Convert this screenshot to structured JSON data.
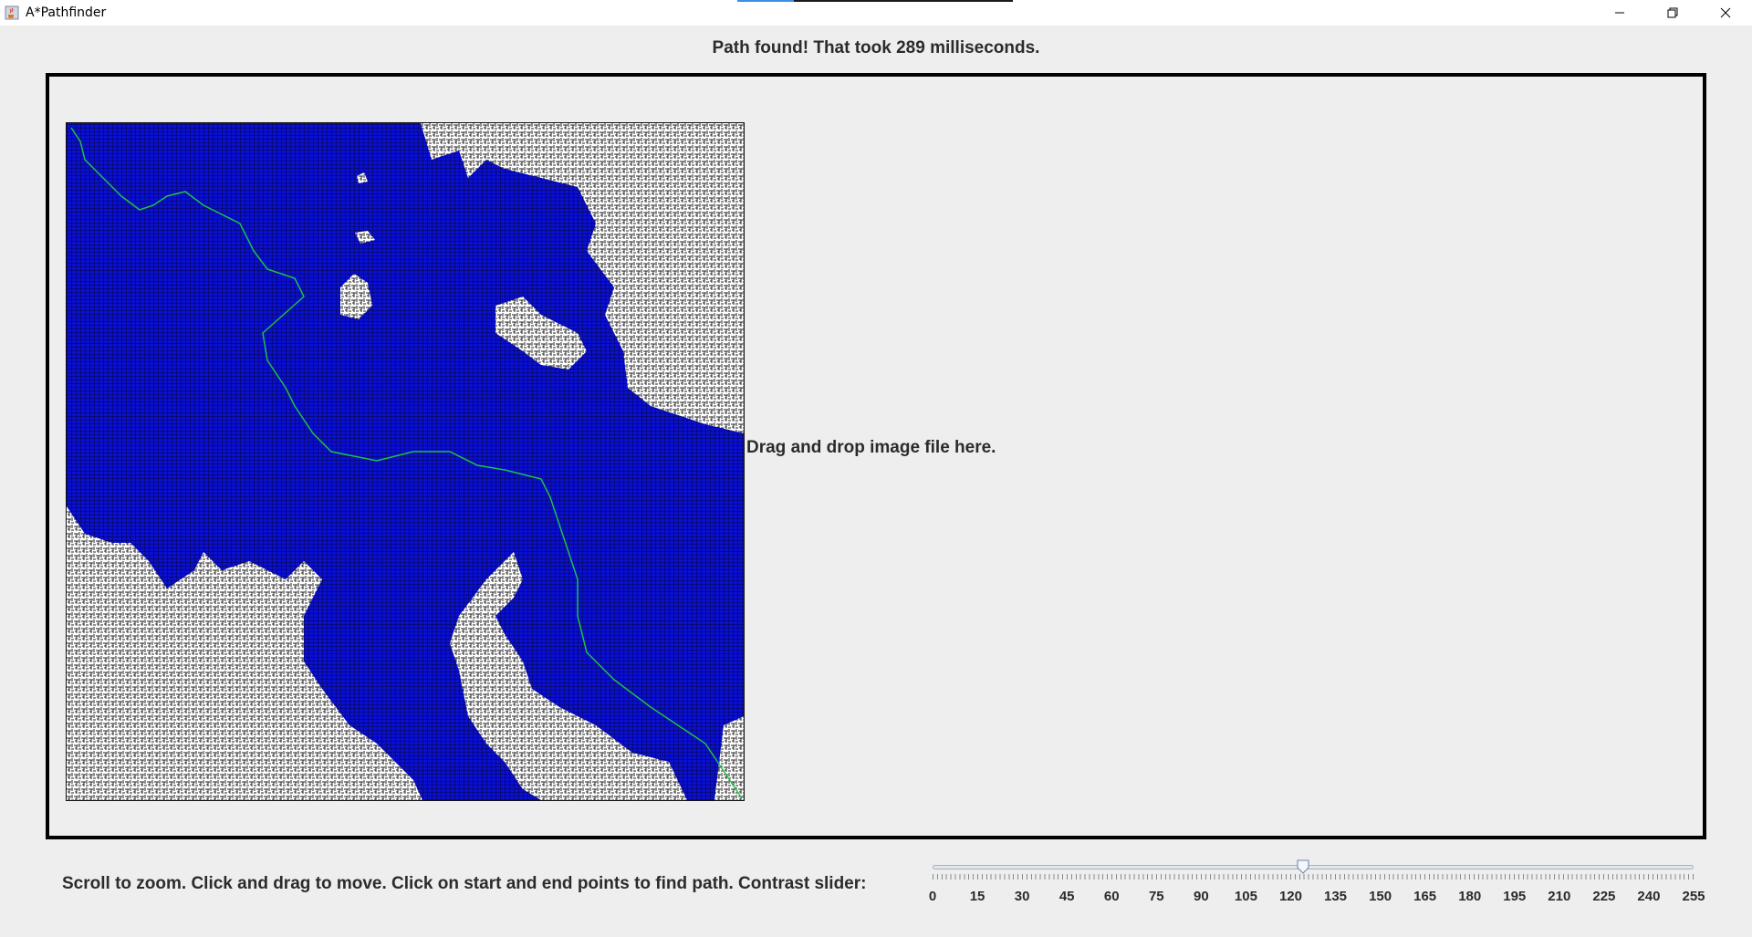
{
  "window": {
    "title": "A*Pathfinder",
    "icon": "java-cup-icon",
    "controls": [
      "minimize-icon",
      "restore-icon",
      "close-icon"
    ]
  },
  "status_text": "Path found! That took 289 milliseconds.",
  "drop_hint": "Drag and drop image file here.",
  "instructions": "Scroll to zoom. Click and drag to move. Click on start and end points to find path. Contrast slider:",
  "contrast_slider": {
    "min": 0,
    "max": 255,
    "value": 124,
    "tick_labels": [
      "0",
      "15",
      "30",
      "45",
      "60",
      "75",
      "90",
      "105",
      "120",
      "135",
      "150",
      "165",
      "180",
      "195",
      "210",
      "225",
      "240",
      "255"
    ]
  },
  "colors": {
    "explored": "#0a0fd0",
    "path": "#1fbf4a",
    "maze_wall": "#ffffff",
    "frame_border": "#000000"
  }
}
